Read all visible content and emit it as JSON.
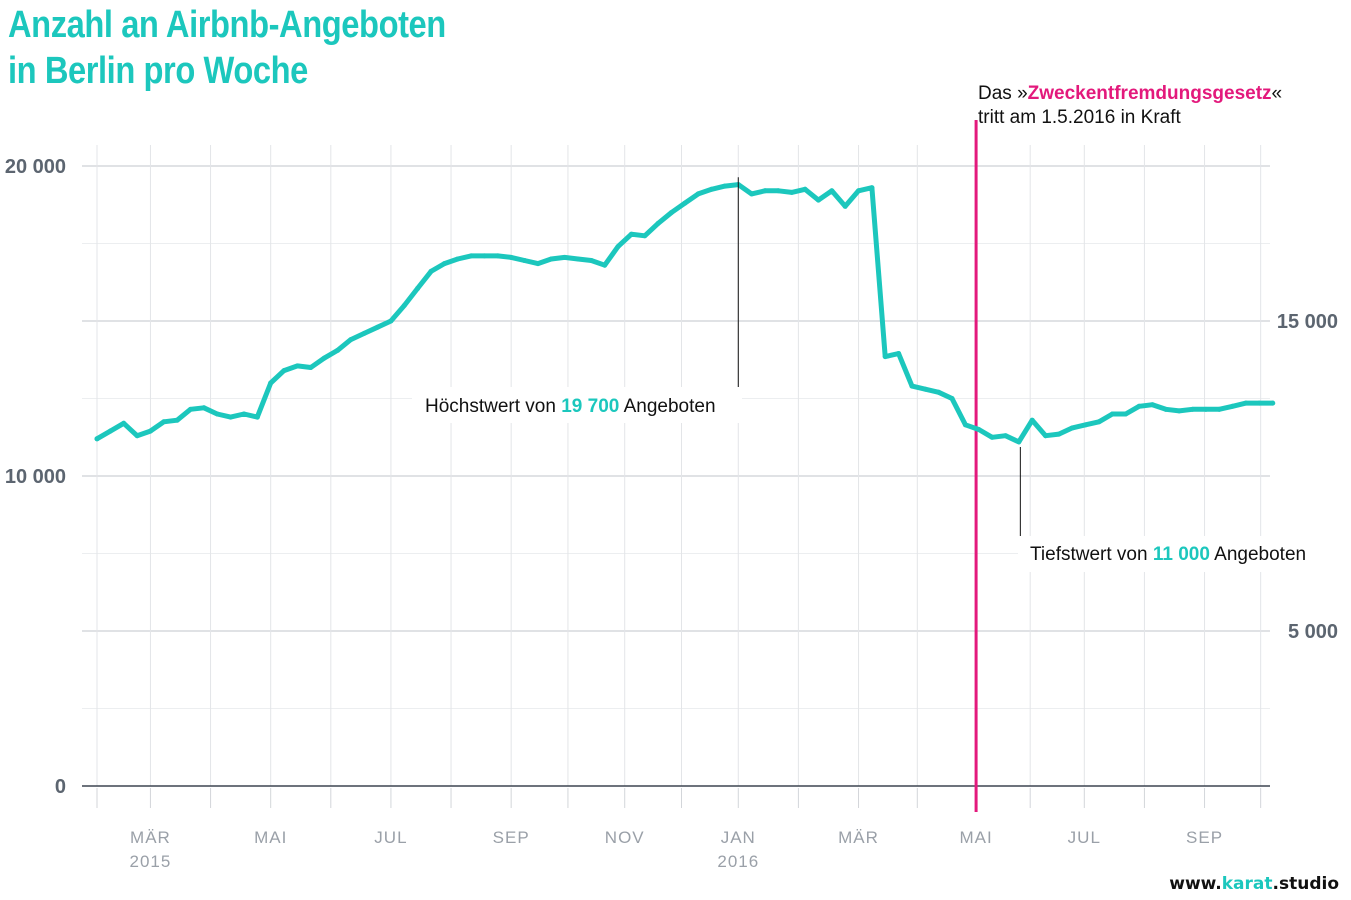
{
  "title": {
    "line1": "Anzahl an Airbnb-Angeboten",
    "line2": "in Berlin pro Woche"
  },
  "credit": {
    "prefix": "www.",
    "brand": "karat",
    "suffix": ".studio"
  },
  "colors": {
    "line": "#1cc7bd",
    "law": "#e3197c",
    "grid": "#d7d9dd",
    "axis": "#5c6570"
  },
  "annotations": {
    "peak": {
      "prefix": "Höchstwert von ",
      "value": "19 700",
      "suffix": " Angeboten"
    },
    "low": {
      "prefix": "Tiefstwert von ",
      "value": "11 000",
      "suffix": " Angeboten"
    },
    "law": {
      "line1_prefix": "Das »",
      "line1_name": "Zweckentfremdungsgesetz",
      "line1_suffix": "«",
      "line2": "tritt am 1.5.2016 in Kraft"
    }
  },
  "chart_data": {
    "type": "line",
    "title": "Anzahl an Airbnb-Angeboten in Berlin pro Woche",
    "xlabel": "",
    "ylabel": "",
    "ylim": [
      0,
      20000
    ],
    "y_ticks_left": [
      {
        "value": 20000,
        "label": "20 000"
      },
      {
        "value": 10000,
        "label": "10 000"
      },
      {
        "value": 0,
        "label": "0"
      }
    ],
    "y_ticks_right": [
      {
        "value": 15000,
        "label": "15 000"
      },
      {
        "value": 5000,
        "label": "5 000"
      }
    ],
    "x_ticks": [
      {
        "week": 4,
        "label": "MÄR",
        "sublabel": "2015"
      },
      {
        "week": 13,
        "label": "MAI",
        "sublabel": ""
      },
      {
        "week": 22,
        "label": "JUL",
        "sublabel": ""
      },
      {
        "week": 31,
        "label": "SEP",
        "sublabel": ""
      },
      {
        "week": 39.5,
        "label": "NOV",
        "sublabel": ""
      },
      {
        "week": 48,
        "label": "JAN",
        "sublabel": "2016"
      },
      {
        "week": 57,
        "label": "MÄR",
        "sublabel": ""
      },
      {
        "week": 65.8,
        "label": "MAI",
        "sublabel": ""
      },
      {
        "week": 73.9,
        "label": "JUL",
        "sublabel": ""
      },
      {
        "week": 82.9,
        "label": "SEP",
        "sublabel": ""
      }
    ],
    "law_week": 65.8,
    "series": [
      {
        "name": "Airbnb-Angebote",
        "x": [
          0,
          1,
          2,
          3,
          4,
          5,
          6,
          7,
          8,
          9,
          10,
          11,
          12,
          13,
          14,
          15,
          16,
          17,
          18,
          19,
          20,
          21,
          22,
          23,
          24,
          25,
          26,
          27,
          28,
          29,
          30,
          31,
          32,
          33,
          34,
          35,
          36,
          37,
          38,
          39,
          40,
          41,
          42,
          43,
          44,
          45,
          46,
          47,
          48,
          49,
          50,
          51,
          52,
          53,
          54,
          55,
          56,
          57,
          58,
          59,
          60,
          61,
          62,
          63,
          64,
          65,
          66,
          67,
          68,
          69,
          70,
          71,
          72,
          73,
          74,
          75,
          76,
          77,
          78,
          79,
          80,
          81,
          82,
          83,
          84,
          85,
          86,
          87,
          88
        ],
        "values": [
          11200,
          11450,
          11700,
          11300,
          11450,
          11750,
          11800,
          12150,
          12200,
          12000,
          11900,
          12000,
          11900,
          13000,
          13400,
          13550,
          13500,
          13800,
          14050,
          14400,
          14600,
          14800,
          15000,
          15500,
          16050,
          16600,
          16850,
          17000,
          17100,
          17100,
          17100,
          17050,
          16950,
          16850,
          17000,
          17050,
          17000,
          16950,
          16800,
          17400,
          17800,
          17750,
          18150,
          18500,
          18800,
          19100,
          19250,
          19350,
          19400,
          19100,
          19200,
          19200,
          19150,
          19250,
          18900,
          19200,
          18700,
          19200,
          19300,
          13850,
          13950,
          12900,
          12800,
          12700,
          12500,
          11650,
          11500,
          11250,
          11300,
          11100,
          11800,
          11300,
          11350,
          11550,
          11650,
          11750,
          12000,
          12000,
          12250,
          12300,
          12150,
          12100,
          12150,
          12150,
          12150,
          12250,
          12350,
          12350,
          12350
        ]
      }
    ],
    "peak": {
      "week": 48,
      "value": 19700
    },
    "low": {
      "week": 69,
      "value": 11000
    }
  }
}
